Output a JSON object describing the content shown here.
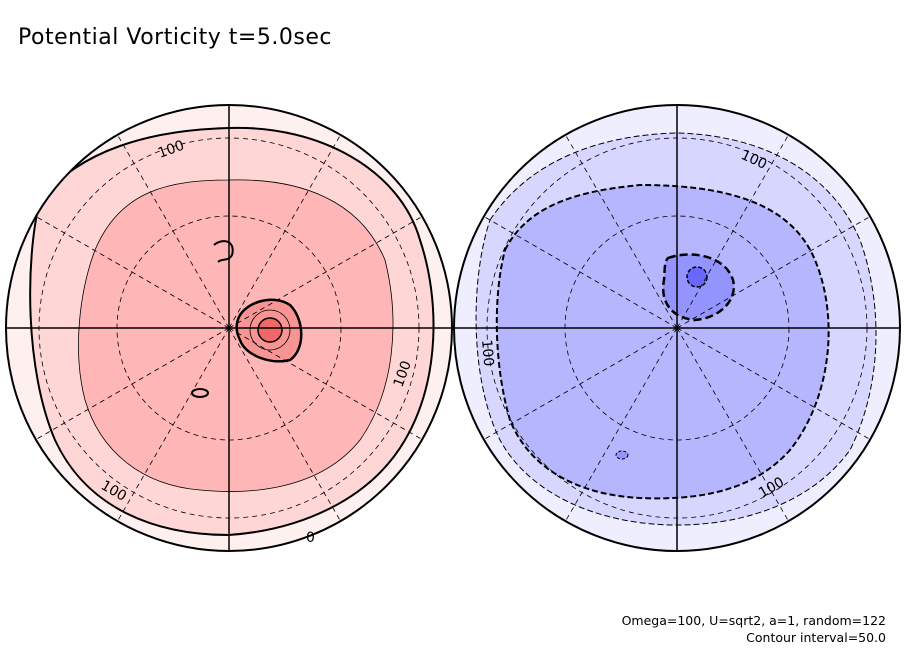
{
  "title": "Potential Vorticity t=5.0sec",
  "footer": {
    "params": "Omega=100, U=sqrt2, a=1, random=122",
    "contour_interval": "Contour interval=50.0"
  },
  "chart_data": {
    "type": "heatmap",
    "subtype": "polar contour (two hemispheres)",
    "title": "Potential Vorticity t=5.0sec",
    "contour_interval": 50.0,
    "panels": [
      {
        "name": "northern-hemisphere",
        "sign": "positive",
        "colors": [
          "#fff0f0",
          "#ffd6d6",
          "#ffb6b6",
          "#f89494",
          "#f06868"
        ],
        "levels": [
          0,
          50,
          100,
          150,
          200
        ],
        "contour_labels": [
          "100",
          "100",
          "100",
          "0"
        ],
        "max_center": "vortex near pole, right of center"
      },
      {
        "name": "southern-hemisphere",
        "sign": "negative",
        "colors": [
          "#eeeeff",
          "#d6d6ff",
          "#b6b6ff",
          "#9494ff",
          "#6868ff"
        ],
        "levels": [
          0,
          -50,
          -100,
          -150,
          -200
        ],
        "contour_labels": [
          "100",
          "100",
          "100"
        ],
        "min_center": "vortex near pole, upper right of center"
      }
    ]
  }
}
